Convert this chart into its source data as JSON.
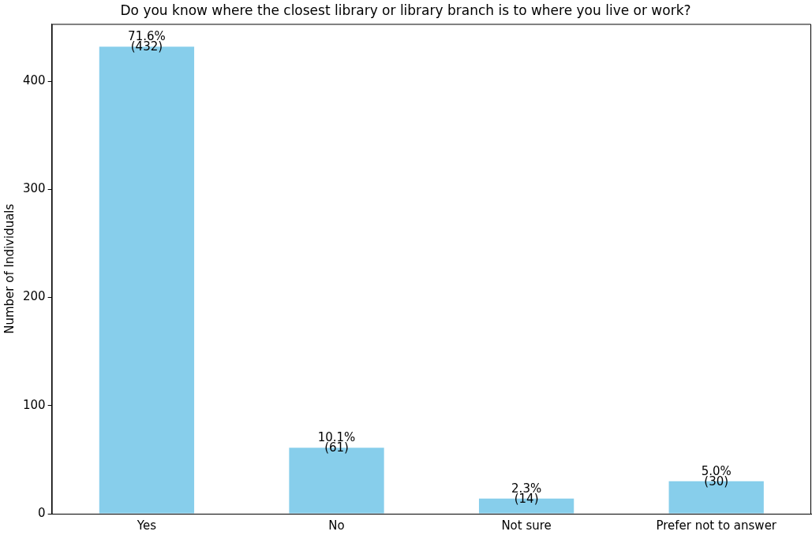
{
  "chart_data": {
    "type": "bar",
    "title": "Do you know where the closest library or library branch is to where you live or work?",
    "ylabel": "Number of Individuals",
    "categories": [
      "Yes",
      "No",
      "Not sure",
      "Prefer not to answer"
    ],
    "values": [
      432,
      61,
      14,
      30
    ],
    "value_labels": [
      "71.6%\n(432)",
      "10.1%\n(61)",
      "2.3%\n(14)",
      "5.0%\n(30)"
    ],
    "color": "#87ceeb",
    "ylim": [
      0,
      453
    ],
    "yticks": [
      0,
      100,
      200,
      300,
      400
    ],
    "grid": false,
    "legend": false
  }
}
